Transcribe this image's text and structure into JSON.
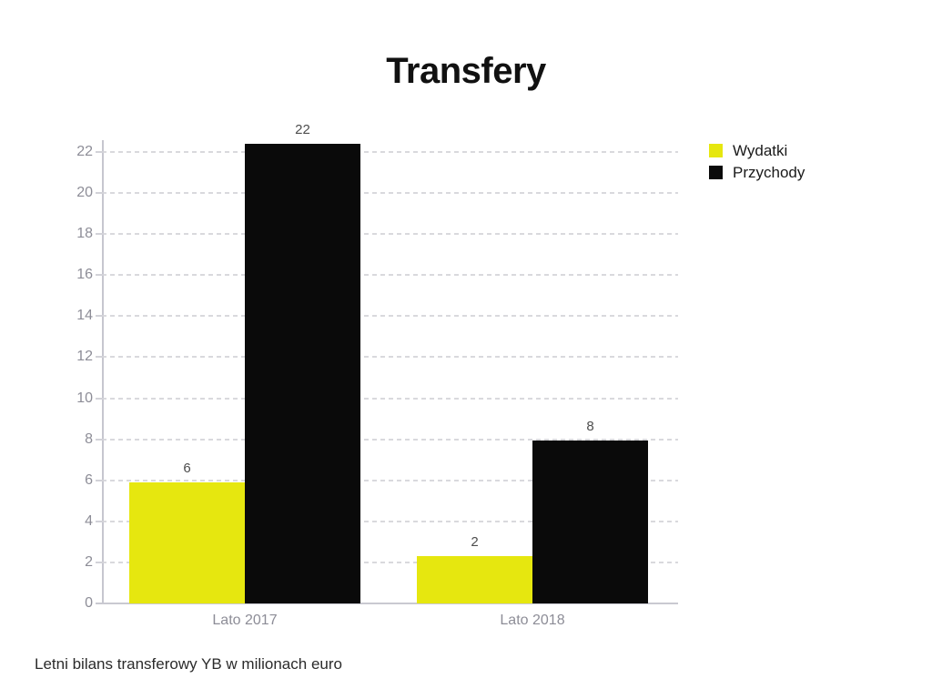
{
  "title": "Transfery",
  "caption": "Letni bilans transferowy YB w milionach euro",
  "legend": {
    "items": [
      {
        "label": "Wydatki",
        "color": "#e6e70f"
      },
      {
        "label": "Przychody",
        "color": "#0a0a0a"
      }
    ],
    "position": "top-right"
  },
  "chart_data": {
    "type": "bar",
    "title": "Transfery",
    "categories": [
      "Lato 2017",
      "Lato 2018"
    ],
    "series": [
      {
        "name": "Wydatki",
        "color": "#e6e70f",
        "values": [
          6,
          2
        ],
        "plotted": [
          5.9,
          2.3
        ]
      },
      {
        "name": "Przychody",
        "color": "#0a0a0a",
        "values": [
          22,
          8
        ],
        "plotted": [
          22.4,
          7.95
        ]
      }
    ],
    "xlabel": "",
    "ylabel": "",
    "ylim": [
      0,
      23
    ],
    "yticks": [
      0,
      2,
      4,
      6,
      8,
      10,
      12,
      14,
      16,
      18,
      20,
      22
    ],
    "grid": "horizontal-dashed",
    "legend_position": "top-right",
    "bar_value_labels": true
  },
  "colors": {
    "background": "#ffffff",
    "title_text": "#111111",
    "axis_text": "#8d8d97",
    "value_label_text": "#4d4d4d",
    "gridline": "#d9d9dd",
    "axis_line": "#c6c6cf",
    "series_wydatki": "#e6e70f",
    "series_przychody": "#0a0a0a"
  }
}
